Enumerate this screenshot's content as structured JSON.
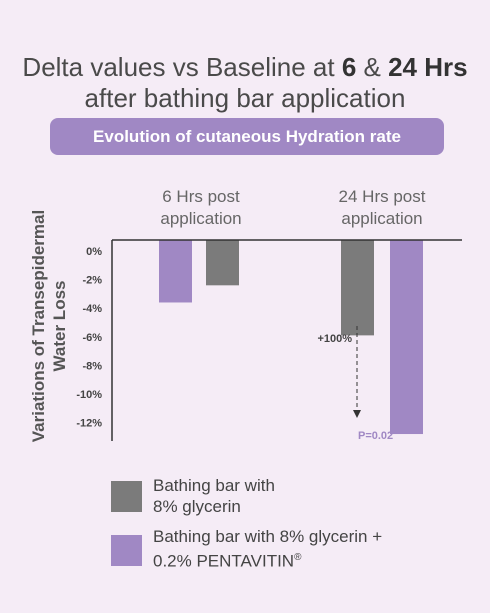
{
  "title_line1_prefix": "Delta values vs Baseline at ",
  "title_line1_bold1": "6",
  "title_line1_mid": " & ",
  "title_line1_bold2": "24 Hrs",
  "title_line2": "after bathing bar application",
  "banner": "Evolution of cutaneous Hydration rate",
  "colors": {
    "background": "#f5ecf6",
    "gray": "#7b7b7b",
    "purple": "#a088c4",
    "banner": "#a088c4"
  },
  "chart_data": {
    "type": "bar",
    "categories": [
      "6 Hrs post application",
      "24 Hrs post application"
    ],
    "ylabel": "Variations of Transepidermal Water Loss",
    "ylim": [
      -13,
      0
    ],
    "yticks": [
      "0%",
      "-2%",
      "-4%",
      "-6%",
      "-8%",
      "-10%",
      "-12%"
    ],
    "ytick_values": [
      0,
      -2,
      -4,
      -6,
      -8,
      -10,
      -12
    ],
    "series": [
      {
        "name": "Bathing bar with 8% glycerin",
        "color": "#7b7b7b",
        "values": [
          -2.4,
          -5.9
        ]
      },
      {
        "name": "Bathing bar with 8% glycerin + 0.2% PENTAVITIN®",
        "color": "#a088c4",
        "values": [
          -3.6,
          -12.8
        ]
      }
    ],
    "annotations": [
      {
        "text": "+100%",
        "color": "#444"
      },
      {
        "text": "P=0.02",
        "color": "#a088c4"
      }
    ]
  },
  "group_labels": [
    {
      "line1": "6 Hrs post",
      "line2": "application"
    },
    {
      "line1": "24 Hrs post",
      "line2": "application"
    }
  ],
  "legend": [
    {
      "line1": "Bathing bar with",
      "line2": "8% glycerin"
    },
    {
      "line1": "Bathing bar with 8% glycerin +",
      "line2": "0.2% PENTAVITIN",
      "sup": "®"
    }
  ]
}
